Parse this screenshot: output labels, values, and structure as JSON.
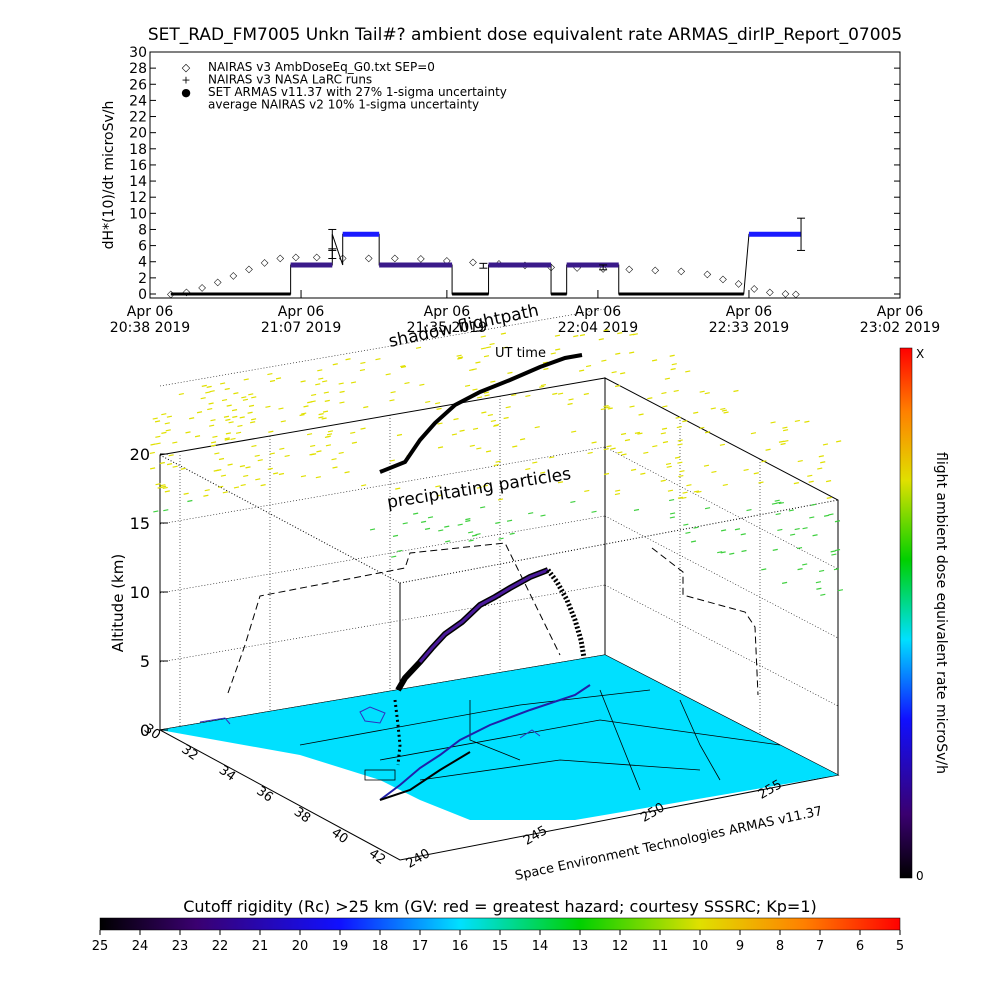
{
  "title": "SET_RAD_FM7005  Unkn Tail#? ambient dose equivalent rate ARMAS_dirIP_Report_07005",
  "chart_data": [
    {
      "type": "line",
      "ylabel": "dH*(10)/dt microSv/h",
      "ylim": [
        0,
        30
      ],
      "y_ticks": [
        0,
        2,
        4,
        6,
        8,
        10,
        12,
        14,
        16,
        18,
        20,
        22,
        24,
        26,
        28,
        30
      ],
      "x_ticks": [
        {
          "line1": "Apr 06",
          "line2": "20:38 2019"
        },
        {
          "line1": "Apr 06",
          "line2": "21:07 2019"
        },
        {
          "line1": "Apr 06",
          "line2": "21:35 2019"
        },
        {
          "line1": "Apr 06",
          "line2": "22:04 2019"
        },
        {
          "line1": "Apr 06",
          "line2": "22:33 2019"
        },
        {
          "line1": "Apr 06",
          "line2": "23:02 2019"
        }
      ],
      "xlabel": "UT time",
      "legend": [
        {
          "symbol": "◇",
          "text": "NAIRAS v3 AmbDoseEq_G0.txt SEP=0"
        },
        {
          "symbol": "+",
          "text": "NAIRAS v3 NASA LaRC runs"
        },
        {
          "symbol": "●",
          "text": "SET ARMAS v11.37 with 27% 1-sigma uncertainty",
          "color": "#1a1aff"
        },
        {
          "symbol": "",
          "text": "average NAIRAS v2 10% 1-sigma uncertainty"
        }
      ],
      "series": [
        {
          "name": "NAIRAS v3 AmbDoseEq_G0.txt SEP=0",
          "x": [
            "20:42",
            "20:45",
            "20:48",
            "20:51",
            "20:54",
            "20:57",
            "21:00",
            "21:03",
            "21:06",
            "21:10",
            "21:15",
            "21:20",
            "21:25",
            "21:30",
            "21:35",
            "21:40",
            "21:45",
            "21:50",
            "21:55",
            "22:00",
            "22:05",
            "22:10",
            "22:15",
            "22:20",
            "22:25",
            "22:28",
            "22:31",
            "22:34",
            "22:37",
            "22:40",
            "22:42"
          ],
          "y": [
            0.1,
            0.4,
            0.9,
            1.6,
            2.4,
            3.2,
            4.0,
            4.6,
            4.7,
            4.7,
            4.6,
            4.6,
            4.6,
            4.5,
            4.3,
            4.1,
            3.9,
            3.7,
            3.5,
            3.4,
            3.3,
            3.2,
            3.1,
            3.0,
            2.6,
            2.0,
            1.4,
            0.8,
            0.4,
            0.2,
            0.1
          ]
        },
        {
          "name": "SET ARMAS v11.37",
          "x": [
            "20:42",
            "21:05",
            "21:05",
            "21:13",
            "21:13",
            "21:15",
            "21:15",
            "21:22",
            "21:22",
            "21:36",
            "21:36",
            "21:43",
            "21:43",
            "21:55",
            "21:55",
            "21:58",
            "21:58",
            "22:08",
            "22:08",
            "22:32",
            "22:33",
            "22:43"
          ],
          "y": [
            0,
            0,
            3.6,
            3.6,
            7.4,
            3.6,
            7.4,
            7.4,
            3.6,
            3.6,
            0,
            0,
            3.6,
            3.6,
            0,
            0,
            3.6,
            3.6,
            0,
            0,
            7.4,
            7.4
          ]
        }
      ],
      "error_bars": [
        {
          "x": "21:13",
          "y": 7.4,
          "low": 5.4,
          "high": 8.0
        },
        {
          "x": "21:13",
          "y": 5.0,
          "low": 4.4,
          "high": 5.6
        },
        {
          "x": "21:42",
          "y": 3.5,
          "low": 3.2,
          "high": 3.8
        },
        {
          "x": "22:05",
          "y": 3.3,
          "low": 3.0,
          "high": 3.6
        },
        {
          "x": "22:43",
          "y": 7.4,
          "low": 5.4,
          "high": 9.4
        }
      ]
    },
    {
      "type": "scatter",
      "zlabel": "Altitude (km)",
      "z_ticks": [
        0,
        5,
        10,
        15,
        20
      ],
      "lat_ticks": [
        "30",
        "32",
        "34",
        "36",
        "38",
        "40",
        "42"
      ],
      "lon_ticks": [
        "240",
        "245",
        "250",
        "255"
      ],
      "annotations": [
        "shadow flightpath",
        "UT time",
        "precipitating particles"
      ],
      "footer": "Space Environment Technologies ARMAS v11.37",
      "surface_color": "#00e0ff",
      "particles_color": "#e0e000"
    }
  ],
  "colorbar_right": {
    "label": "flight ambient dose equivalent rate microSv/h",
    "top": "X",
    "bottom": "0"
  },
  "colorbar_bottom": {
    "title": "Cutoff rigidity (Rc) >25 km (GV: red = greatest hazard; courtesy SSSRC; Kp=1)",
    "ticks": [
      "25",
      "24",
      "23",
      "22",
      "21",
      "20",
      "19",
      "18",
      "17",
      "16",
      "15",
      "14",
      "13",
      "12",
      "11",
      "10",
      "9",
      "8",
      "7",
      "6",
      "5"
    ]
  }
}
